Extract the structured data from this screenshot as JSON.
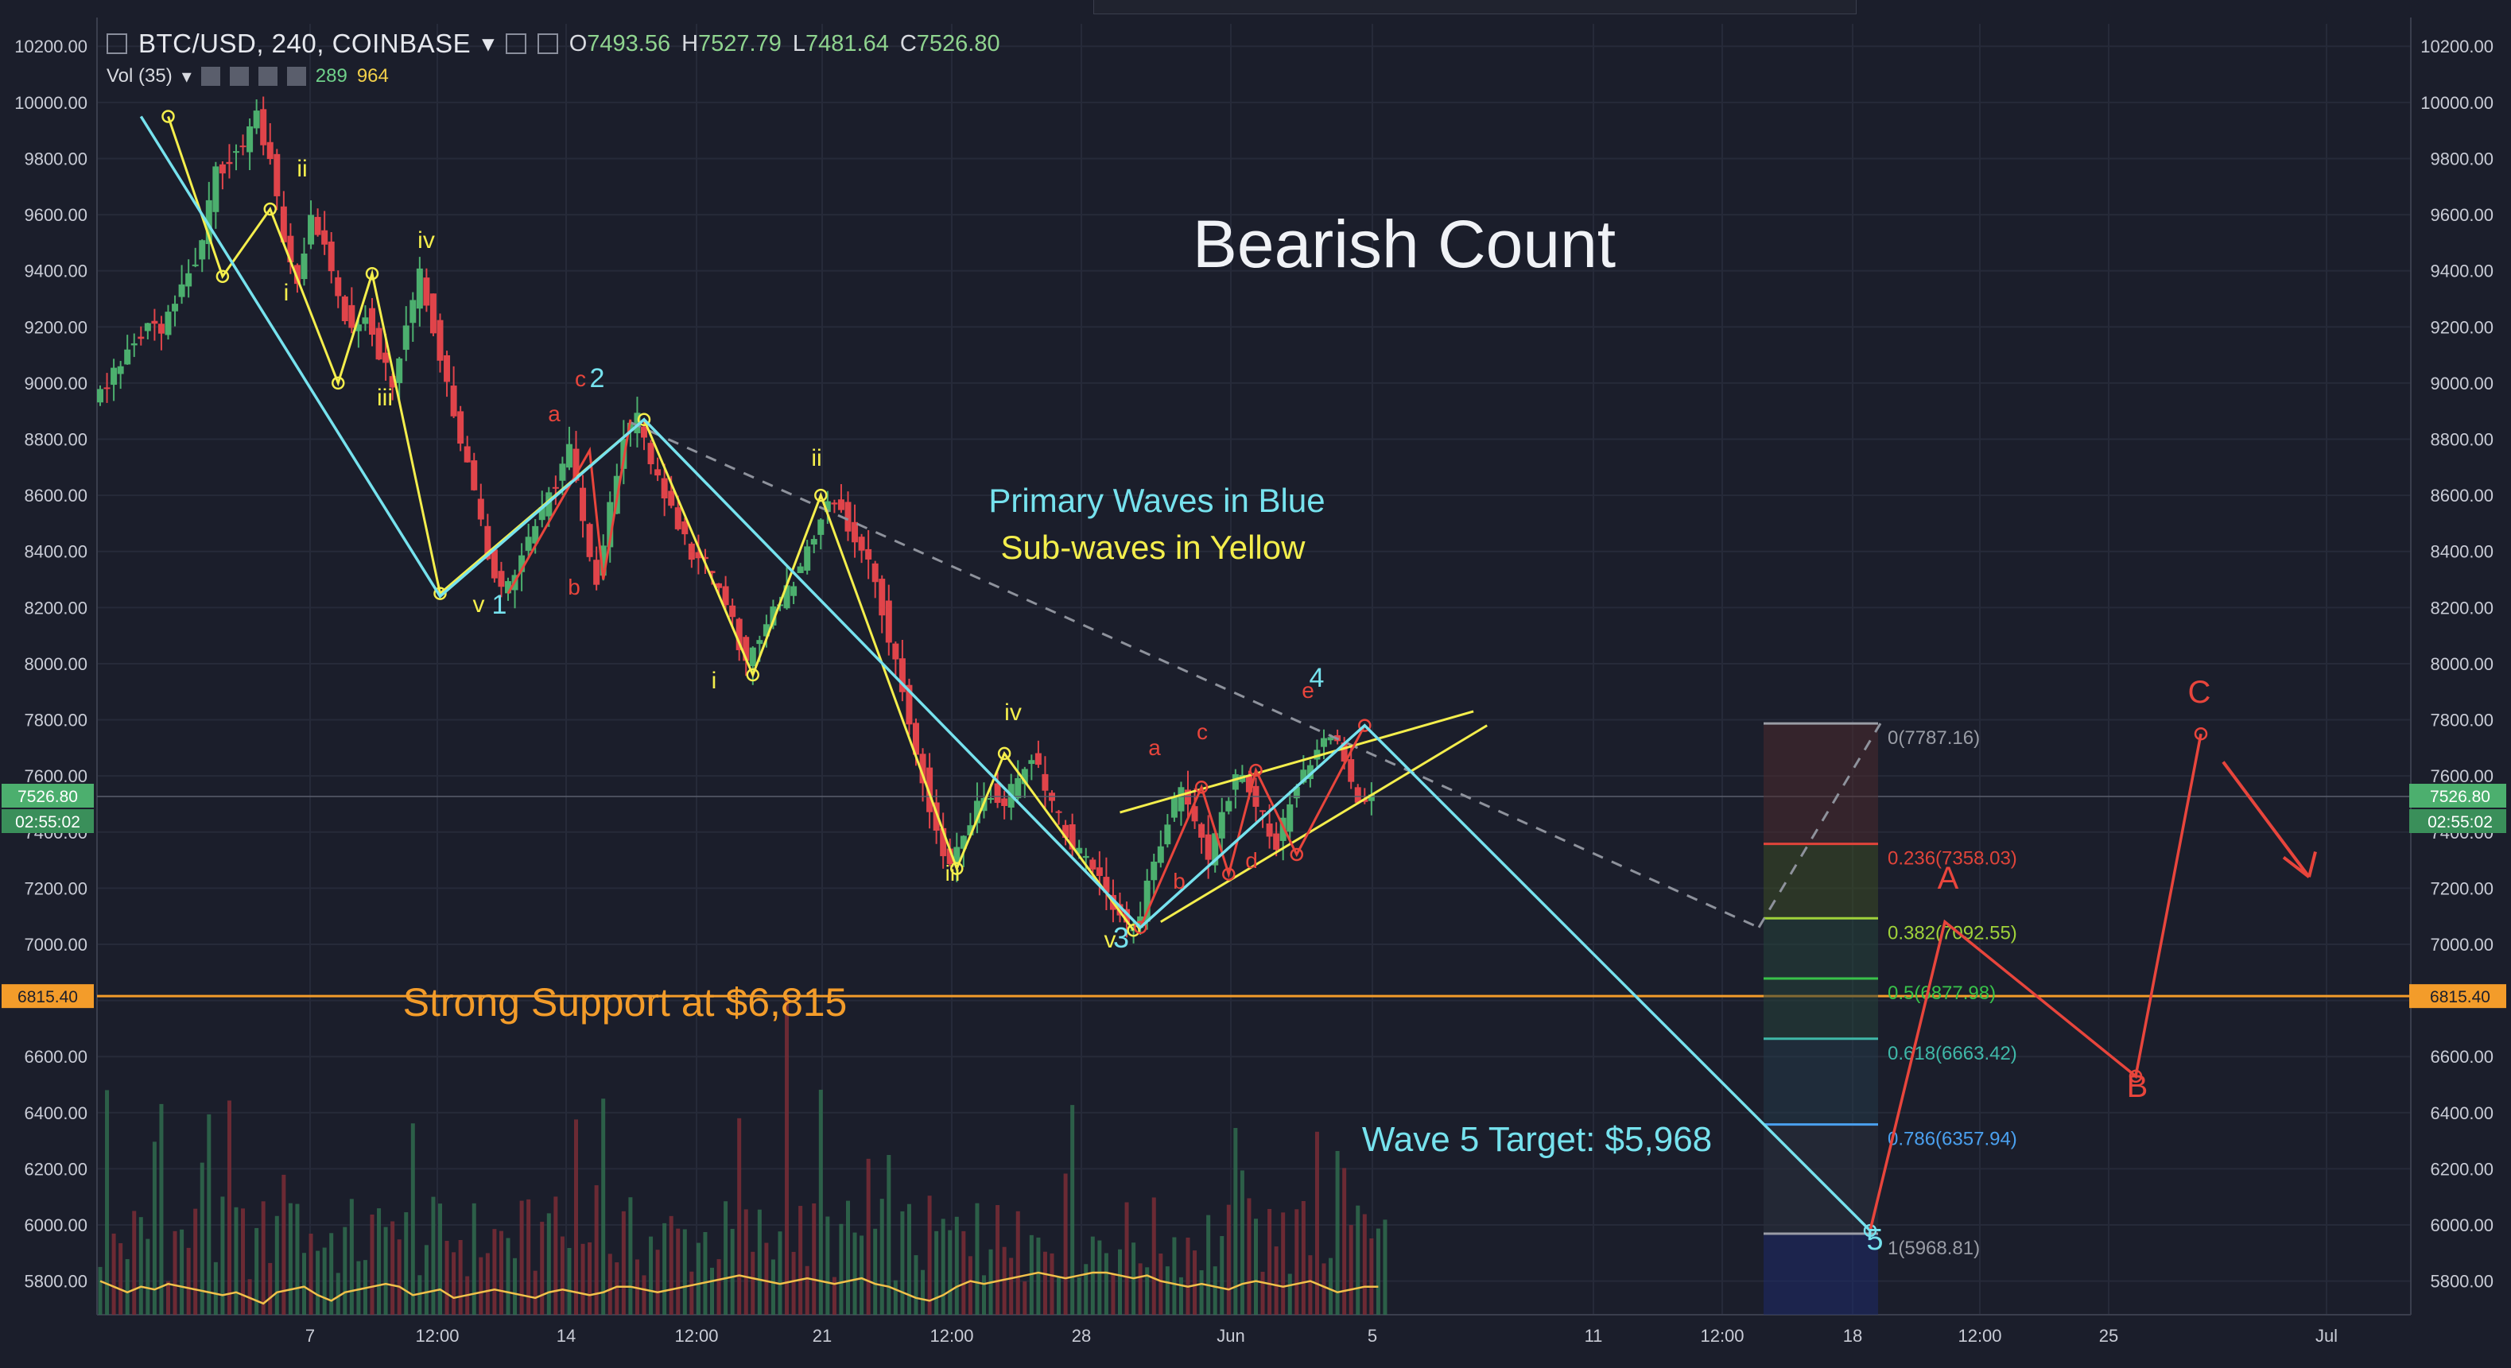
{
  "header": {
    "symbol": "BTC/USD, 240, COINBASE",
    "open_label": "O",
    "open": "7493.56",
    "high_label": "H",
    "high": "7527.79",
    "low_label": "L",
    "low": "7481.64",
    "close_label": "C",
    "close": "7526.80",
    "volume_label": "Vol (35)",
    "volume_value": "289",
    "volume_ma": "964"
  },
  "chart_data": {
    "type": "candlestick",
    "title": "Bearish Count",
    "ylim": [
      5680,
      10280
    ],
    "y_ticks": [
      "10200.00",
      "10000.00",
      "9800.00",
      "9600.00",
      "9400.00",
      "9200.00",
      "9000.00",
      "8800.00",
      "8600.00",
      "8400.00",
      "8200.00",
      "8000.00",
      "7800.00",
      "7600.00",
      "7400.00",
      "7200.00",
      "7000.00",
      "6800.00",
      "6600.00",
      "6400.00",
      "6200.00",
      "6000.00",
      "5800.00"
    ],
    "x_ticks": [
      "7",
      "12:00",
      "14",
      "12:00",
      "21",
      "12:00",
      "28",
      "Jun",
      "5",
      "11",
      "12:00",
      "18",
      "12:00",
      "25",
      "Jul"
    ],
    "last_price_label": "7526.80",
    "countdown_label": "02:55:02",
    "support_label_axis": "6815.40",
    "support_price": 6815.4,
    "price_path": [
      [
        0,
        8950
      ],
      [
        1,
        8990
      ],
      [
        2,
        9080
      ],
      [
        3,
        9150
      ],
      [
        4,
        9220
      ],
      [
        5,
        9200
      ],
      [
        6,
        9300
      ],
      [
        7,
        9400
      ],
      [
        8,
        9500
      ],
      [
        9,
        9750
      ],
      [
        10,
        9800
      ],
      [
        11,
        9850
      ],
      [
        12,
        9950
      ],
      [
        13,
        9800
      ],
      [
        14,
        9500
      ],
      [
        15,
        9380
      ],
      [
        16,
        9600
      ],
      [
        17,
        9500
      ],
      [
        18,
        9300
      ],
      [
        19,
        9200
      ],
      [
        20,
        9250
      ],
      [
        21,
        9100
      ],
      [
        22,
        9000
      ],
      [
        23,
        9200
      ],
      [
        24,
        9380
      ],
      [
        25,
        9200
      ],
      [
        26,
        9000
      ],
      [
        27,
        8800
      ],
      [
        28,
        8600
      ],
      [
        29,
        8400
      ],
      [
        30,
        8250
      ],
      [
        31,
        8300
      ],
      [
        32,
        8450
      ],
      [
        33,
        8550
      ],
      [
        34,
        8650
      ],
      [
        35,
        8760
      ],
      [
        36,
        8500
      ],
      [
        37,
        8300
      ],
      [
        38,
        8550
      ],
      [
        39,
        8800
      ],
      [
        40,
        8870
      ],
      [
        41,
        8700
      ],
      [
        42,
        8600
      ],
      [
        43,
        8500
      ],
      [
        44,
        8400
      ],
      [
        45,
        8350
      ],
      [
        46,
        8250
      ],
      [
        47,
        8150
      ],
      [
        48,
        8000
      ],
      [
        49,
        8100
      ],
      [
        50,
        8200
      ],
      [
        51,
        8250
      ],
      [
        52,
        8350
      ],
      [
        53,
        8450
      ],
      [
        54,
        8600
      ],
      [
        55,
        8550
      ],
      [
        56,
        8450
      ],
      [
        57,
        8350
      ],
      [
        58,
        8200
      ],
      [
        59,
        8000
      ],
      [
        60,
        7800
      ],
      [
        61,
        7600
      ],
      [
        62,
        7400
      ],
      [
        63,
        7270
      ],
      [
        64,
        7400
      ],
      [
        65,
        7500
      ],
      [
        66,
        7550
      ],
      [
        67,
        7500
      ],
      [
        68,
        7600
      ],
      [
        69,
        7680
      ],
      [
        70,
        7550
      ],
      [
        71,
        7450
      ],
      [
        72,
        7350
      ],
      [
        73,
        7300
      ],
      [
        74,
        7250
      ],
      [
        75,
        7150
      ],
      [
        76,
        7050
      ],
      [
        77,
        7100
      ],
      [
        78,
        7300
      ],
      [
        79,
        7450
      ],
      [
        80,
        7550
      ],
      [
        81,
        7450
      ],
      [
        82,
        7300
      ],
      [
        83,
        7450
      ],
      [
        84,
        7600
      ],
      [
        85,
        7550
      ],
      [
        86,
        7450
      ],
      [
        87,
        7350
      ],
      [
        88,
        7500
      ],
      [
        89,
        7600
      ],
      [
        90,
        7720
      ],
      [
        91,
        7760
      ],
      [
        92,
        7650
      ],
      [
        93,
        7500
      ],
      [
        94,
        7520
      ]
    ],
    "volume_path": [
      [
        0,
        5800
      ],
      [
        1,
        5780
      ],
      [
        2,
        5760
      ],
      [
        3,
        5780
      ],
      [
        4,
        5770
      ],
      [
        5,
        5790
      ],
      [
        6,
        5780
      ],
      [
        7,
        5770
      ],
      [
        8,
        5760
      ],
      [
        9,
        5750
      ],
      [
        10,
        5760
      ],
      [
        11,
        5740
      ],
      [
        12,
        5720
      ],
      [
        13,
        5760
      ],
      [
        14,
        5770
      ],
      [
        15,
        5780
      ],
      [
        16,
        5750
      ],
      [
        17,
        5730
      ],
      [
        18,
        5760
      ],
      [
        19,
        5770
      ],
      [
        20,
        5780
      ],
      [
        21,
        5790
      ],
      [
        22,
        5780
      ],
      [
        23,
        5750
      ],
      [
        24,
        5760
      ],
      [
        25,
        5770
      ],
      [
        26,
        5740
      ],
      [
        27,
        5750
      ],
      [
        28,
        5760
      ],
      [
        29,
        5770
      ],
      [
        30,
        5760
      ],
      [
        31,
        5750
      ],
      [
        32,
        5740
      ],
      [
        33,
        5760
      ],
      [
        34,
        5770
      ],
      [
        35,
        5760
      ],
      [
        36,
        5750
      ],
      [
        37,
        5760
      ],
      [
        38,
        5780
      ],
      [
        39,
        5780
      ],
      [
        40,
        5770
      ],
      [
        41,
        5760
      ],
      [
        42,
        5770
      ],
      [
        43,
        5780
      ],
      [
        44,
        5790
      ],
      [
        45,
        5800
      ],
      [
        46,
        5810
      ],
      [
        47,
        5820
      ],
      [
        48,
        5810
      ],
      [
        49,
        5800
      ],
      [
        50,
        5790
      ],
      [
        51,
        5800
      ],
      [
        52,
        5810
      ],
      [
        53,
        5800
      ],
      [
        54,
        5790
      ],
      [
        55,
        5800
      ],
      [
        56,
        5810
      ],
      [
        57,
        5790
      ],
      [
        58,
        5780
      ],
      [
        59,
        5760
      ],
      [
        60,
        5740
      ],
      [
        61,
        5730
      ],
      [
        62,
        5750
      ],
      [
        63,
        5780
      ],
      [
        64,
        5800
      ],
      [
        65,
        5790
      ],
      [
        66,
        5800
      ],
      [
        67,
        5810
      ],
      [
        68,
        5820
      ],
      [
        69,
        5830
      ],
      [
        70,
        5820
      ],
      [
        71,
        5810
      ],
      [
        72,
        5820
      ],
      [
        73,
        5830
      ],
      [
        74,
        5830
      ],
      [
        75,
        5820
      ],
      [
        76,
        5810
      ],
      [
        77,
        5820
      ],
      [
        78,
        5800
      ],
      [
        79,
        5790
      ],
      [
        80,
        5780
      ],
      [
        81,
        5790
      ],
      [
        82,
        5780
      ],
      [
        83,
        5770
      ],
      [
        84,
        5790
      ],
      [
        85,
        5800
      ],
      [
        86,
        5790
      ],
      [
        87,
        5780
      ],
      [
        88,
        5790
      ],
      [
        89,
        5800
      ],
      [
        90,
        5780
      ],
      [
        91,
        5760
      ],
      [
        92,
        5770
      ],
      [
        93,
        5780
      ],
      [
        94,
        5780
      ]
    ],
    "fib_levels": [
      {
        "label": "0(7787.16)",
        "price": 7787.16,
        "color": "#9a9da6"
      },
      {
        "label": "0.236(7358.03)",
        "price": 7358.03,
        "color": "#e0443a"
      },
      {
        "label": "0.382(7092.55)",
        "price": 7092.55,
        "color": "#9fd23a"
      },
      {
        "label": "0.5(6877.98)",
        "price": 6877.98,
        "color": "#39c24a"
      },
      {
        "label": "0.618(6663.42)",
        "price": 6663.42,
        "color": "#3fb8a8"
      },
      {
        "label": "0.786(6357.94)",
        "price": 6357.94,
        "color": "#4aa0ef"
      },
      {
        "label": "1(5968.81)",
        "price": 5968.81,
        "color": "#9a9da6"
      }
    ],
    "primary_waves": [
      {
        "label": "1",
        "t": 15.0,
        "p": 8240
      },
      {
        "label": "2",
        "t": 38.5,
        "p": 8870
      },
      {
        "label": "3",
        "t": 79.5,
        "p": 7060
      },
      {
        "label": "4",
        "t": 95.5,
        "p": 7780
      },
      {
        "label": "5",
        "t": 135.5,
        "p": 5980
      }
    ],
    "forecast_points": [
      {
        "label": "A",
        "t": 143.0,
        "p": 7070
      },
      {
        "label": "B",
        "t": 160.0,
        "p": 6530
      },
      {
        "label": "C",
        "t": 164.5,
        "p": 7750
      }
    ],
    "annotations": {
      "primary_note": "Primary Waves in Blue",
      "sub_note": "Sub-waves in Yellow",
      "support_note": "Strong Support at $6,815",
      "target_note": "Wave 5 Target: $5,968"
    },
    "colors": {
      "background": "#1b1e2b",
      "up": "#4caf6e",
      "down": "#e0444a",
      "primary": "#76e2ee",
      "sub": "#f4ee4c",
      "corrective": "#e8453c",
      "support": "#f39c2a"
    }
  }
}
